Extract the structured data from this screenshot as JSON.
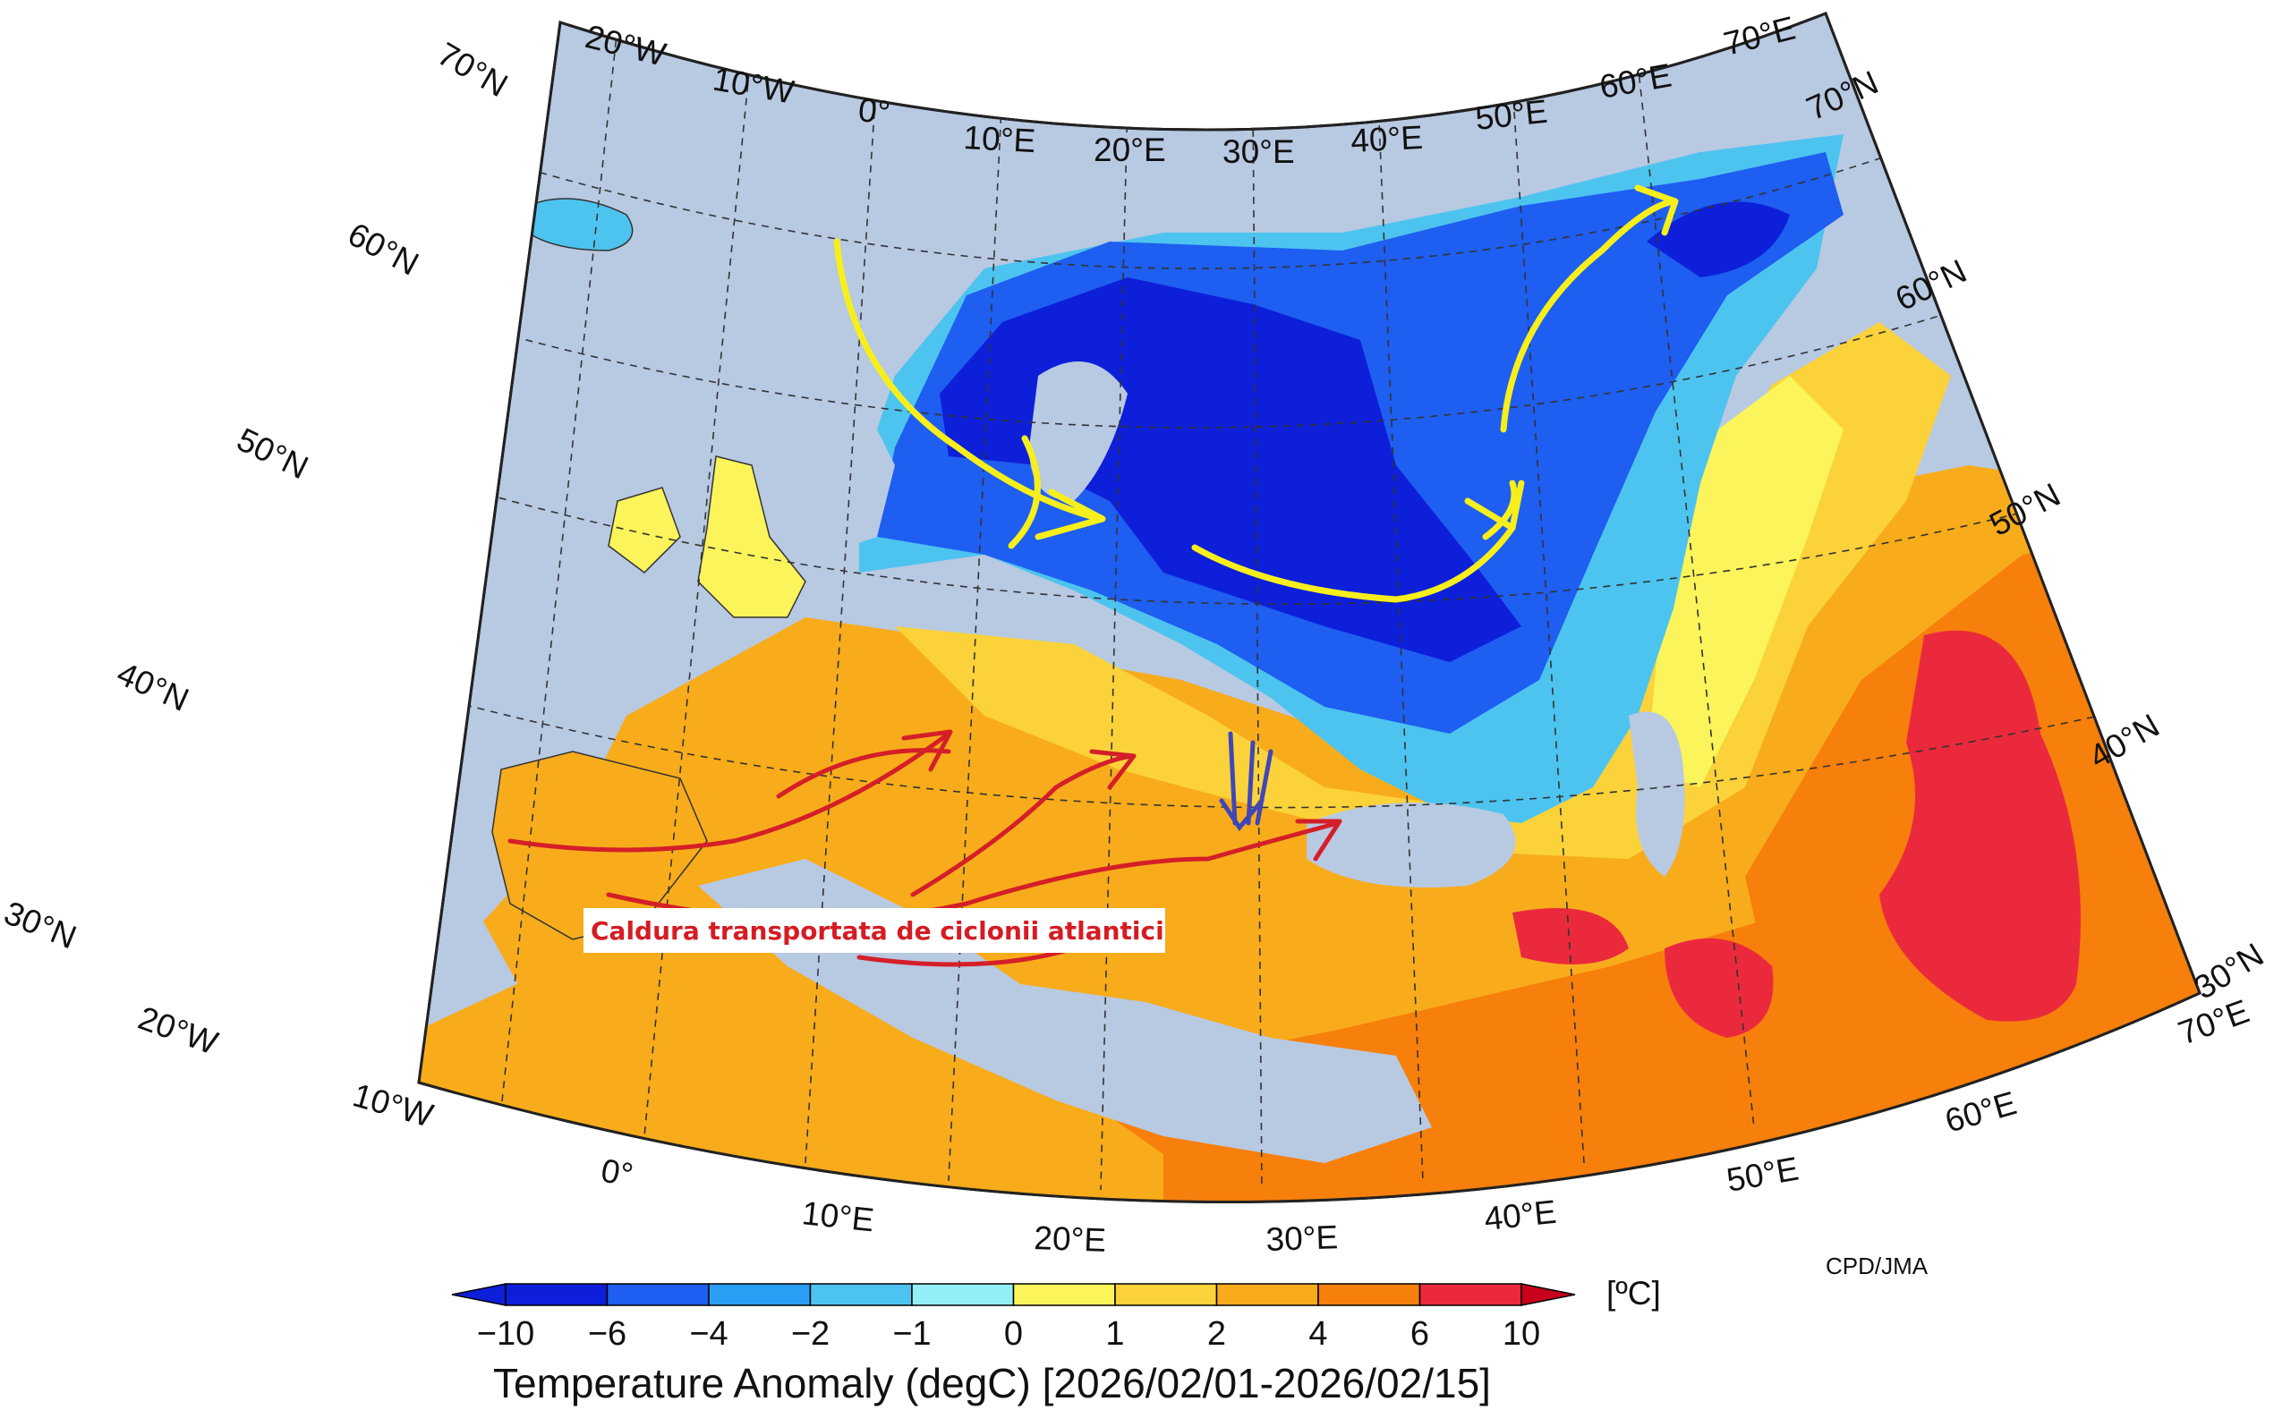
{
  "map": {
    "longitude_labels_top": [
      "20°W",
      "10°W",
      "0°",
      "10°E",
      "20°E",
      "30°E",
      "40°E",
      "50°E",
      "60°E",
      "70°E"
    ],
    "longitude_labels_bottom": [
      "20°W",
      "10°W",
      "0°",
      "10°E",
      "20°E",
      "30°E",
      "40°E",
      "50°E",
      "60°E",
      "70°E"
    ],
    "latitude_labels_left": [
      "70°N",
      "60°N",
      "50°N",
      "40°N",
      "30°N"
    ],
    "latitude_labels_right": [
      "70°N",
      "60°N",
      "50°N",
      "40°N",
      "30°N"
    ],
    "credit": "CPD/JMA",
    "annotation": "Caldura transportata de ciclonii atlantici"
  },
  "colorbar": {
    "unit": "[ºC]",
    "ticks": [
      "−10",
      "−6",
      "−4",
      "−2",
      "−1",
      "0",
      "1",
      "2",
      "4",
      "6",
      "10"
    ],
    "colors": [
      "#0d1fd9",
      "#1e5ef0",
      "#2a9ef2",
      "#4dc4ef",
      "#93eef5",
      "#fbf45a",
      "#fbd23a",
      "#f8ac1b",
      "#f77f0b",
      "#ea2a3c",
      "#c8001c"
    ],
    "title": "Temperature Anomaly (degC) [2026/02/01-2026/02/15]"
  },
  "colors": {
    "ocean": "#b8c9e2",
    "yellow_arrows": "#f7ef1c",
    "red_arrows": "#d41f28",
    "blue_arrows": "#3f47b8"
  }
}
